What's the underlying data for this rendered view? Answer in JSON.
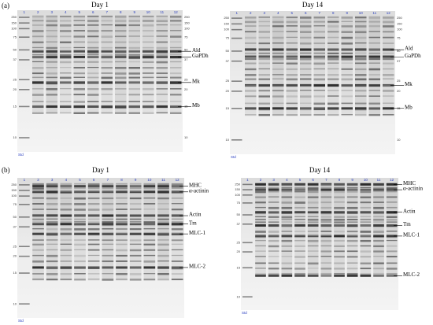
{
  "figure": {
    "rows": [
      {
        "label": "(a)",
        "gels": [
          {
            "title": "Day 1",
            "lanes": [
              "1",
              "2",
              "3",
              "4",
              "5",
              "6",
              "7",
              "8",
              "9",
              "10",
              "11",
              "12"
            ],
            "markers": [
              "250",
              "150",
              "100",
              "75",
              "50",
              "37",
              "25",
              "20",
              "15",
              "10"
            ],
            "bands": [
              "Ald",
              "GaPDh",
              "Mk",
              "Mb"
            ],
            "std": "Std"
          },
          {
            "title": "Day 14",
            "lanes": [
              "1",
              "2",
              "3",
              "4",
              "5",
              "6",
              "7",
              "8",
              "9",
              "10",
              "11",
              "12"
            ],
            "markers": [
              "250",
              "150",
              "100",
              "75",
              "50",
              "37",
              "25",
              "20",
              "15",
              "10"
            ],
            "bands": [
              "Ald",
              "GaPDh",
              "Mk",
              "Mb"
            ],
            "std": "Std"
          }
        ]
      },
      {
        "label": "(b)",
        "gels": [
          {
            "title": "Day 1",
            "lanes": [
              "1",
              "2",
              "3",
              "4",
              "5",
              "6",
              "7",
              "8",
              "9",
              "10",
              "11",
              "12"
            ],
            "markers": [
              "250",
              "150",
              "100",
              "75",
              "50",
              "37",
              "25",
              "20",
              "15",
              "10"
            ],
            "bands": [
              "MHC",
              "α-actinin",
              "Actin",
              "Tm",
              "MLC-1",
              "MLC-2"
            ],
            "std": "Std"
          },
          {
            "title": "Day 14",
            "lanes": [
              "1",
              "2",
              "3",
              "4",
              "5",
              "6",
              "7",
              "8",
              "9",
              "10",
              "11",
              "12"
            ],
            "markers": [
              "250",
              "150",
              "100",
              "75",
              "50",
              "37",
              "25",
              "20",
              "15",
              "10"
            ],
            "bands": [
              "MHC",
              "α-actinin",
              "Actin",
              "Tm",
              "MLC-1",
              "MLC-2"
            ],
            "std": "Std"
          }
        ]
      }
    ]
  }
}
